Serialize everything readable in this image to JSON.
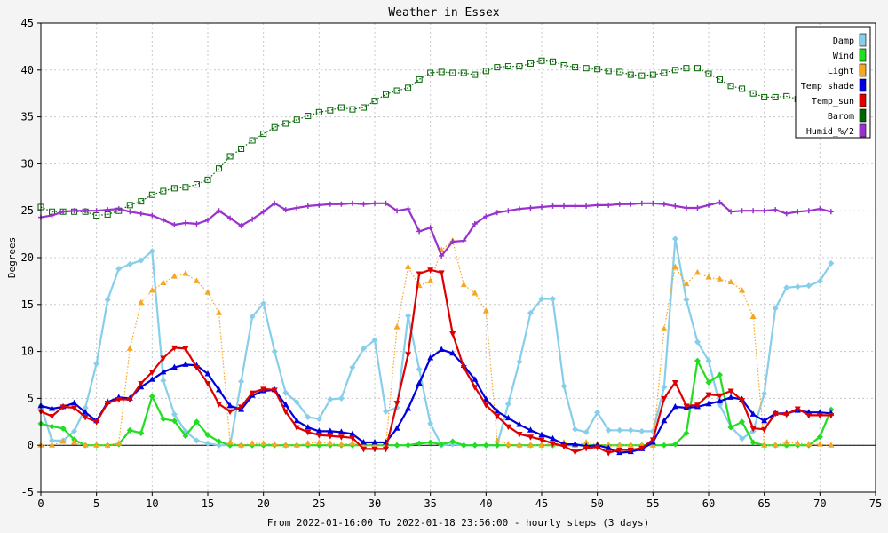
{
  "chart_data": {
    "type": "line",
    "title": "Weather in Essex",
    "xlabel": "From 2022-01-16:00 To 2022-01-18 23:56:00 - hourly steps (3 days)",
    "ylabel": "Degrees",
    "xlim": [
      0,
      75
    ],
    "ylim": [
      -5,
      45
    ],
    "x_ticks": [
      0,
      5,
      10,
      15,
      20,
      25,
      30,
      35,
      40,
      45,
      50,
      55,
      60,
      65,
      70,
      75
    ],
    "y_ticks": [
      -5,
      0,
      5,
      10,
      15,
      20,
      25,
      30,
      35,
      40,
      45
    ],
    "grid": true,
    "legend_position": "top-right",
    "x": [
      0,
      1,
      2,
      3,
      4,
      5,
      6,
      7,
      8,
      9,
      10,
      11,
      12,
      13,
      14,
      15,
      16,
      17,
      18,
      19,
      20,
      21,
      22,
      23,
      24,
      25,
      26,
      27,
      28,
      29,
      30,
      31,
      32,
      33,
      34,
      35,
      36,
      37,
      38,
      39,
      40,
      41,
      42,
      43,
      44,
      45,
      46,
      47,
      48,
      49,
      50,
      51,
      52,
      53,
      54,
      55,
      56,
      57,
      58,
      59,
      60,
      61,
      62,
      63,
      64,
      65,
      66,
      67,
      68,
      69,
      70,
      71
    ],
    "series": [
      {
        "name": "Damp",
        "color": "#87ceeb",
        "style": "solid",
        "marker": "diamond",
        "values": [
          4.2,
          0.5,
          0.5,
          1.5,
          4,
          8.7,
          15.5,
          18.8,
          19.3,
          19.7,
          20.7,
          6.9,
          3.3,
          1.5,
          0.5,
          0.2,
          0,
          0,
          6.8,
          13.7,
          15.1,
          10,
          5.6,
          4.6,
          3,
          2.8,
          4.9,
          5,
          8.3,
          10.3,
          11.2,
          3.6,
          4,
          13.8,
          8.1,
          2.3,
          0,
          0.1,
          0,
          0,
          0,
          0,
          4.4,
          8.9,
          14.1,
          15.6,
          15.6,
          6.3,
          1.7,
          1.4,
          3.5,
          1.6,
          1.6,
          1.6,
          1.5,
          1.5,
          6.2,
          22,
          15.5,
          11,
          9,
          4.3,
          2,
          0.7,
          1.5,
          5.5,
          14.6,
          16.8,
          16.9,
          17,
          17.5,
          19.4
        ]
      },
      {
        "name": "Wind",
        "color": "#22dd22",
        "style": "solid",
        "marker": "diamond",
        "values": [
          2.3,
          2,
          1.8,
          0.6,
          0,
          0,
          0,
          0.1,
          1.6,
          1.3,
          5.2,
          2.8,
          2.6,
          1,
          2.5,
          1.1,
          0.4,
          0,
          0,
          0,
          0,
          0,
          0,
          0,
          0,
          0,
          0,
          0,
          0,
          0,
          0,
          0,
          0,
          0,
          0.2,
          0.3,
          0.1,
          0.4,
          0,
          0,
          0,
          0,
          0,
          0,
          0,
          0,
          0,
          0,
          0,
          0,
          0,
          0,
          0,
          0,
          0,
          0,
          0,
          0.1,
          1.3,
          9,
          6.7,
          7.5,
          1.9,
          2.5,
          0.3,
          0,
          0,
          0,
          0,
          0,
          0.9,
          3.8
        ]
      },
      {
        "name": "Light",
        "color": "#f5a623",
        "style": "dotted",
        "marker": "triangle",
        "values": [
          0,
          0,
          0.4,
          0.3,
          0,
          0,
          0,
          0.2,
          10.3,
          15.2,
          16.5,
          17.3,
          18,
          18.3,
          17.5,
          16.3,
          14.1,
          0.3,
          0,
          0.2,
          0.2,
          0.1,
          0,
          0,
          0.2,
          0.3,
          0.2,
          0.1,
          0.2,
          0,
          0,
          0,
          12.6,
          19,
          17,
          17.5,
          20.8,
          21.8,
          17.1,
          16.2,
          14.3,
          0.5,
          0.1,
          0,
          0,
          0,
          0.2,
          0.3,
          0,
          0.3,
          0.1,
          0,
          0,
          0,
          0,
          0,
          12.4,
          19,
          17.2,
          18.4,
          17.9,
          17.7,
          17.4,
          16.5,
          13.7,
          0,
          0,
          0.3,
          0.2,
          0.1,
          0.1,
          0
        ]
      },
      {
        "name": "Temp_shade",
        "color": "#0000dd",
        "style": "solid",
        "marker": "triangle",
        "values": [
          4.2,
          3.9,
          4.1,
          4.5,
          3.5,
          2.6,
          4.6,
          5.1,
          5,
          6.2,
          7,
          7.8,
          8.3,
          8.6,
          8.5,
          7.6,
          5.9,
          4.2,
          3.8,
          5.3,
          5.8,
          5.9,
          4.3,
          2.6,
          1.9,
          1.5,
          1.5,
          1.4,
          1.2,
          0.3,
          0.3,
          0.3,
          1.8,
          3.9,
          6.6,
          9.3,
          10.2,
          9.8,
          8.5,
          7,
          4.9,
          3.6,
          2.9,
          2.2,
          1.6,
          1.1,
          0.7,
          0.1,
          0.1,
          -0.1,
          0,
          -0.3,
          -0.8,
          -0.7,
          -0.4,
          0.3,
          2.6,
          4.1,
          4,
          4.1,
          4.4,
          4.7,
          5.1,
          4.9,
          3.3,
          2.6,
          3.4,
          3.4,
          3.7,
          3.5,
          3.5,
          3.4
        ]
      },
      {
        "name": "Temp_sun",
        "color": "#dd0000",
        "style": "solid",
        "marker": "inverted-triangle",
        "values": [
          3.6,
          3.1,
          4.1,
          4,
          3,
          2.5,
          4.5,
          4.9,
          4.9,
          6.6,
          7.8,
          9.3,
          10.4,
          10.3,
          8.3,
          6.6,
          4.4,
          3.6,
          4.1,
          5.6,
          6,
          5.9,
          3.6,
          1.9,
          1.4,
          1.1,
          1,
          0.9,
          0.8,
          -0.4,
          -0.4,
          -0.4,
          4.5,
          9.7,
          18.3,
          18.7,
          18.4,
          11.9,
          8.3,
          6.2,
          4.3,
          3.1,
          2,
          1.2,
          0.9,
          0.6,
          0.2,
          -0.1,
          -0.7,
          -0.3,
          -0.2,
          -0.8,
          -0.5,
          -0.5,
          -0.3,
          0.6,
          5,
          6.7,
          4.2,
          4.3,
          5.4,
          5.3,
          5.8,
          4.8,
          1.8,
          1.7,
          3.4,
          3.3,
          3.9,
          3.2,
          3.2,
          3.2
        ]
      },
      {
        "name": "Barom",
        "color": "#006400",
        "style": "dotted",
        "marker": "square",
        "values": [
          25.4,
          24.9,
          24.9,
          24.9,
          24.9,
          24.5,
          24.6,
          25,
          25.6,
          26,
          26.7,
          27.1,
          27.4,
          27.5,
          27.8,
          28.3,
          29.5,
          30.8,
          31.6,
          32.5,
          33.2,
          33.9,
          34.3,
          34.7,
          35.1,
          35.5,
          35.7,
          36,
          35.8,
          36,
          36.7,
          37.4,
          37.8,
          38.1,
          39,
          39.7,
          39.8,
          39.7,
          39.7,
          39.5,
          39.9,
          40.3,
          40.4,
          40.4,
          40.7,
          41,
          40.9,
          40.5,
          40.3,
          40.2,
          40.1,
          39.9,
          39.8,
          39.5,
          39.4,
          39.5,
          39.7,
          40,
          40.2,
          40.2,
          39.6,
          39,
          38.3,
          38,
          37.5,
          37.1,
          37.1,
          37.2,
          36.9,
          37.3,
          37.2,
          36.8
        ]
      },
      {
        "name": "Humid_%/2",
        "color": "#9932cc",
        "style": "solid",
        "marker": "plus",
        "values": [
          24.3,
          24.5,
          24.9,
          25,
          25,
          25,
          25.1,
          25.2,
          24.9,
          24.7,
          24.5,
          24,
          23.5,
          23.7,
          23.6,
          24,
          25,
          24.2,
          23.4,
          24.1,
          24.9,
          25.8,
          25.1,
          25.3,
          25.5,
          25.6,
          25.7,
          25.7,
          25.8,
          25.7,
          25.8,
          25.8,
          25,
          25.2,
          22.8,
          23.2,
          20.2,
          21.7,
          21.8,
          23.6,
          24.4,
          24.8,
          25,
          25.2,
          25.3,
          25.4,
          25.5,
          25.5,
          25.5,
          25.5,
          25.6,
          25.6,
          25.7,
          25.7,
          25.8,
          25.8,
          25.7,
          25.5,
          25.3,
          25.3,
          25.6,
          25.9,
          24.9,
          25,
          25,
          25,
          25.1,
          24.7,
          24.9,
          25,
          25.2,
          24.9
        ]
      }
    ]
  }
}
